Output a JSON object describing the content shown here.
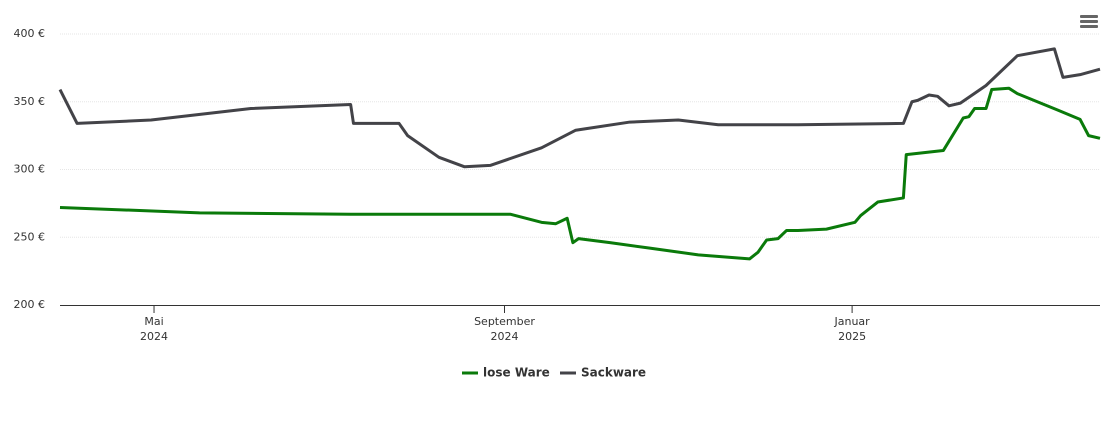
{
  "chart_data": {
    "type": "line",
    "xlim": [
      "2024-03-29",
      "2025-03-29"
    ],
    "xticks": [
      {
        "value": "2024-05-01",
        "label": "Mai",
        "year": "2024"
      },
      {
        "value": "2024-09-01",
        "label": "September",
        "year": "2024"
      },
      {
        "value": "2025-01-01",
        "label": "Januar",
        "year": "2025"
      }
    ],
    "ylim": [
      200,
      400
    ],
    "yticks": [
      {
        "value": 200,
        "label": "200 €"
      },
      {
        "value": 250,
        "label": "250 €"
      },
      {
        "value": 300,
        "label": "300 €"
      },
      {
        "value": 350,
        "label": "350 €"
      },
      {
        "value": 400,
        "label": "400 €"
      }
    ],
    "grid": true,
    "legend": "bottom",
    "series": [
      {
        "name": "lose Ware",
        "color": "#0a7a0a",
        "x": [
          "2024-03-29",
          "2024-05-17",
          "2024-07-09",
          "2024-09-03",
          "2024-09-14",
          "2024-09-19",
          "2024-09-23",
          "2024-09-25",
          "2024-09-27",
          "2024-10-08",
          "2024-10-22",
          "2024-11-08",
          "2024-11-26",
          "2024-11-29",
          "2024-12-02",
          "2024-12-06",
          "2024-12-09",
          "2024-12-13",
          "2024-12-23",
          "2025-01-02",
          "2025-01-04",
          "2025-01-10",
          "2025-01-19",
          "2025-01-20",
          "2025-02-02",
          "2025-02-09",
          "2025-02-11",
          "2025-02-13",
          "2025-02-17",
          "2025-02-19",
          "2025-02-25",
          "2025-02-28",
          "2025-03-14",
          "2025-03-22",
          "2025-03-25",
          "2025-03-29"
        ],
        "values": [
          272,
          268,
          267,
          267,
          261,
          260,
          264,
          246,
          249,
          246,
          242,
          237,
          234,
          239,
          248,
          249,
          255,
          255,
          256,
          261,
          266,
          276,
          279,
          311,
          314,
          338,
          339,
          345,
          345,
          359,
          360,
          356,
          344,
          337,
          325,
          323
        ]
      },
      {
        "name": "Sackware",
        "color": "#434348",
        "x": [
          "2024-03-29",
          "2024-04-04",
          "2024-04-30",
          "2024-06-04",
          "2024-07-09",
          "2024-07-10",
          "2024-07-26",
          "2024-07-29",
          "2024-08-09",
          "2024-08-18",
          "2024-08-27",
          "2024-09-14",
          "2024-09-26",
          "2024-10-15",
          "2024-11-01",
          "2024-11-15",
          "2024-12-13",
          "2025-01-19",
          "2025-01-22",
          "2025-01-24",
          "2025-01-28",
          "2025-01-31",
          "2025-02-04",
          "2025-02-08",
          "2025-02-17",
          "2025-02-28",
          "2025-03-13",
          "2025-03-16",
          "2025-03-22",
          "2025-03-29"
        ],
        "values": [
          359,
          334,
          336.5,
          345,
          348,
          334,
          334,
          325,
          309,
          302,
          303,
          316,
          329,
          335,
          336.5,
          333,
          333,
          334,
          350,
          351,
          355,
          354,
          347,
          349,
          362,
          384,
          389,
          368,
          370,
          374
        ]
      }
    ]
  }
}
